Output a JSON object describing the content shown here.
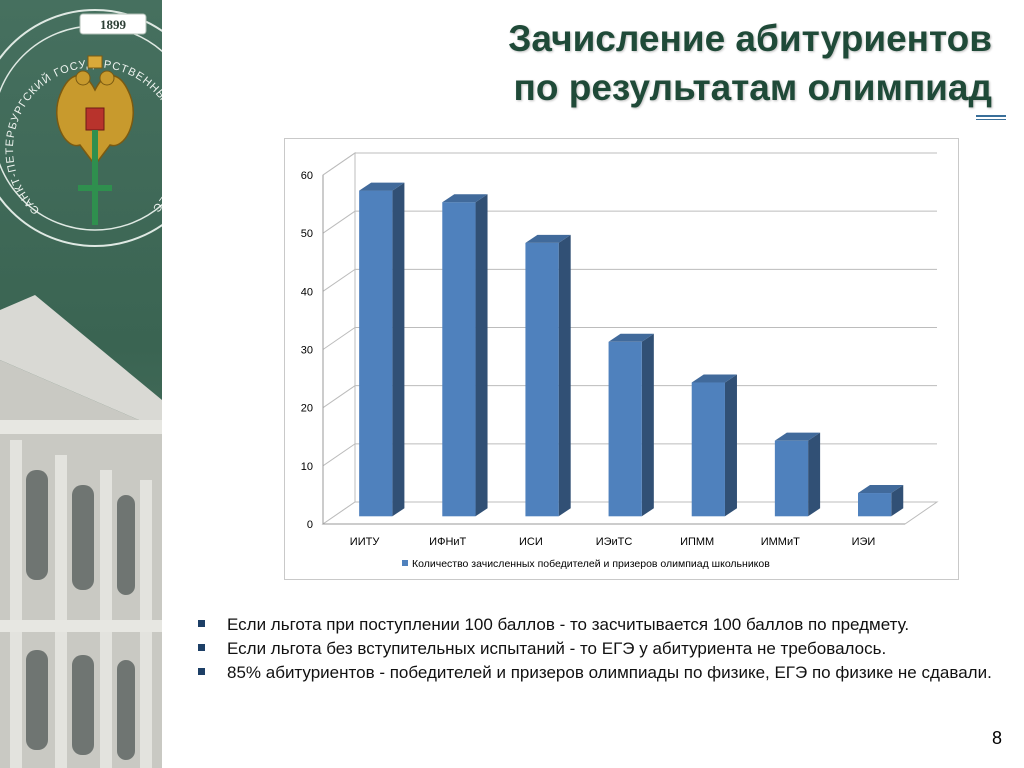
{
  "slide": {
    "title_lines": [
      "Зачисление абитуриентов",
      "по результатам олимпиад"
    ],
    "page_number": "8",
    "accent_color": "#1f4a38",
    "logo": {
      "year": "1899",
      "ring_text": "САНКТ-ПЕТЕРБУРГСКИЙ ГОСУДАРСТВЕННЫЙ ПОЛИТЕХНИЧЕСКИЙ УНИВЕРСИТЕТ"
    },
    "bullets": [
      "Если льгота при поступлении 100 баллов - то засчитывается 100 баллов по предмету.",
      "Если льгота без вступительных испытаний - то ЕГЭ у абитуриента не требовалось.",
      "85% абитуриентов - победителей и призеров олимпиады по физике, ЕГЭ по физике не сдавали."
    ]
  },
  "chart_data": {
    "type": "bar",
    "style": "3d-column",
    "categories": [
      "ИИТУ",
      "ИФНиТ",
      "ИСИ",
      "ИЭиТС",
      "ИПММ",
      "ИММиТ",
      "ИЭИ"
    ],
    "series": [
      {
        "name": "Количество зачисленных победителей и призеров олимпиад школьников",
        "values": [
          56,
          54,
          47,
          30,
          23,
          13,
          4
        ],
        "color": "#4f81bd"
      }
    ],
    "y_ticks": [
      "0",
      "10",
      "20",
      "30",
      "40",
      "50",
      "60"
    ],
    "ylim": [
      0,
      60
    ],
    "grid": true,
    "legend_position": "bottom"
  }
}
